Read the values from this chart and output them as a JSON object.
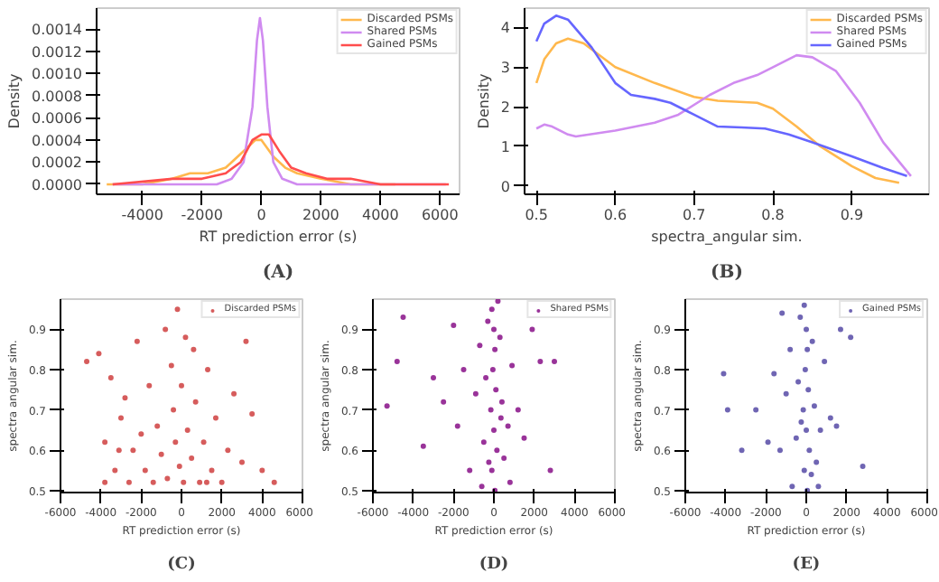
{
  "chart_data": [
    {
      "type": "line",
      "xlabel": "RT prediction error (s)",
      "ylabel": "Density",
      "annotations": [
        "(A)"
      ],
      "legend": "top right",
      "grid": false,
      "xlim": [
        -5540,
        6660
      ],
      "xticks": [
        -4000,
        -2000,
        0,
        2000,
        4000,
        6000
      ],
      "ylim": [
        -9e-05,
        0.00159
      ],
      "yticks": [
        {
          "value": 0,
          "label": "0.0000"
        },
        {
          "value": 0.0002,
          "label": "0.0002"
        },
        {
          "value": 0.0004,
          "label": "0.0004"
        },
        {
          "value": 0.0006,
          "label": "0.0006"
        },
        {
          "value": 0.0008,
          "label": "0.0008"
        },
        {
          "value": 0.001,
          "label": "0.0010"
        },
        {
          "value": 0.0012,
          "label": "0.0012"
        },
        {
          "value": 0.0014,
          "label": "0.0014"
        }
      ],
      "series": [
        {
          "name": "Discarded PSMs",
          "color": "#ffb84d",
          "x": [
            -5200,
            -4000,
            -3000,
            -2400,
            -1800,
            -1200,
            -600,
            -200,
            0,
            400,
            800,
            1200,
            2000,
            3000,
            4500
          ],
          "values": [
            0,
            0,
            5e-05,
            0.0001,
            0.0001,
            0.00015,
            0.0003,
            0.0004,
            0.0004,
            0.00025,
            0.00015,
            0.0001,
            5e-05,
            0,
            0
          ]
        },
        {
          "name": "Shared PSMs",
          "color": "#d08bf0",
          "x": [
            -5000,
            -3000,
            -1500,
            -1000,
            -600,
            -300,
            -150,
            -50,
            50,
            200,
            400,
            700,
            1200,
            3000,
            6200
          ],
          "values": [
            0,
            0,
            0,
            5e-05,
            0.0002,
            0.0007,
            0.0013,
            0.0015,
            0.0013,
            0.0007,
            0.0002,
            5e-05,
            0,
            0,
            0
          ]
        },
        {
          "name": "Gained PSMs",
          "color": "#ff4d4d",
          "x": [
            -5000,
            -3000,
            -2000,
            -1200,
            -700,
            -300,
            0,
            250,
            600,
            1000,
            1500,
            2200,
            3000,
            4000,
            6300
          ],
          "values": [
            0,
            5e-05,
            5e-05,
            0.0001,
            0.0002,
            0.0004,
            0.00045,
            0.00045,
            0.0003,
            0.00015,
            0.0001,
            5e-05,
            5e-05,
            0,
            0
          ]
        }
      ]
    },
    {
      "type": "line",
      "xlabel": "spectra_angular sim.",
      "ylabel": "Density",
      "annotations": [
        "(B)"
      ],
      "legend": "top right",
      "grid": false,
      "xlim": [
        0.485,
        0.998
      ],
      "xticks": [
        0.5,
        0.6,
        0.7,
        0.8,
        0.9
      ],
      "ylim": [
        -0.21,
        4.49
      ],
      "yticks": [
        0,
        1,
        2,
        3,
        4
      ],
      "series": [
        {
          "name": "Discarded PSMs",
          "color": "#ffb84d",
          "x": [
            0.5,
            0.51,
            0.525,
            0.54,
            0.56,
            0.6,
            0.65,
            0.7,
            0.73,
            0.78,
            0.8,
            0.83,
            0.86,
            0.9,
            0.93,
            0.96
          ],
          "values": [
            2.6,
            3.2,
            3.6,
            3.72,
            3.6,
            3.0,
            2.6,
            2.25,
            2.15,
            2.1,
            1.95,
            1.5,
            1.0,
            0.5,
            0.2,
            0.08
          ]
        },
        {
          "name": "Shared PSMs",
          "color": "#d08bf0",
          "x": [
            0.5,
            0.51,
            0.52,
            0.54,
            0.55,
            0.6,
            0.65,
            0.68,
            0.72,
            0.75,
            0.78,
            0.8,
            0.83,
            0.85,
            0.88,
            0.91,
            0.94,
            0.975
          ],
          "values": [
            1.45,
            1.55,
            1.5,
            1.3,
            1.25,
            1.4,
            1.6,
            1.8,
            2.3,
            2.6,
            2.8,
            3.0,
            3.3,
            3.25,
            2.9,
            2.1,
            1.1,
            0.25
          ]
        },
        {
          "name": "Gained PSMs",
          "color": "#6666ff",
          "x": [
            0.5,
            0.51,
            0.525,
            0.54,
            0.57,
            0.6,
            0.62,
            0.65,
            0.67,
            0.7,
            0.73,
            0.76,
            0.79,
            0.82,
            0.85,
            0.9,
            0.94,
            0.97
          ],
          "values": [
            3.65,
            4.1,
            4.3,
            4.2,
            3.5,
            2.6,
            2.3,
            2.2,
            2.1,
            1.8,
            1.5,
            1.48,
            1.45,
            1.3,
            1.1,
            0.75,
            0.45,
            0.25
          ]
        }
      ]
    },
    {
      "type": "scatter",
      "xlabel": "RT prediction error (s)",
      "ylabel": "spectra angular sim.",
      "annotations": [
        "(C)"
      ],
      "legend": "top right",
      "grid": false,
      "marker": "circle",
      "xlim": [
        -6000,
        6000
      ],
      "xticks": [
        -6000,
        -4000,
        -2000,
        0,
        2000,
        4000,
        6000
      ],
      "ylim": [
        0.495,
        0.975
      ],
      "yticks": [
        0.5,
        0.6,
        0.7,
        0.8,
        0.9
      ],
      "series": [
        {
          "name": "Discarded PSMs",
          "color": "#cc3333",
          "x": [
            -4700,
            -4100,
            -3800,
            -3500,
            -3300,
            -3000,
            -2800,
            -2600,
            -2400,
            -2200,
            -2000,
            -1800,
            -1600,
            -1400,
            -1200,
            -1000,
            -800,
            -700,
            -500,
            -400,
            -300,
            -200,
            -100,
            0,
            100,
            200,
            300,
            500,
            700,
            900,
            1100,
            1300,
            1500,
            1700,
            2000,
            2300,
            2600,
            3000,
            3200,
            3500,
            4000,
            4600,
            -3100,
            1250,
            -3800,
            600
          ],
          "values": [
            0.82,
            0.84,
            0.62,
            0.78,
            0.55,
            0.68,
            0.73,
            0.52,
            0.6,
            0.87,
            0.64,
            0.55,
            0.76,
            0.52,
            0.66,
            0.59,
            0.9,
            0.53,
            0.81,
            0.7,
            0.62,
            0.95,
            0.56,
            0.76,
            0.52,
            0.88,
            0.65,
            0.58,
            0.72,
            0.52,
            0.62,
            0.8,
            0.55,
            0.68,
            0.52,
            0.6,
            0.74,
            0.57,
            0.87,
            0.69,
            0.55,
            0.52,
            0.6,
            0.52,
            0.52,
            0.85
          ]
        }
      ]
    },
    {
      "type": "scatter",
      "xlabel": "RT prediction error (s)",
      "ylabel": "spectra angular sim.",
      "annotations": [
        "(D)"
      ],
      "legend": "top right",
      "grid": false,
      "marker": "circle",
      "xlim": [
        -6000,
        6000
      ],
      "xticks": [
        -6000,
        -4000,
        -2000,
        0,
        2000,
        4000,
        6000
      ],
      "ylim": [
        0.495,
        0.975
      ],
      "yticks": [
        0.5,
        0.6,
        0.7,
        0.8,
        0.9
      ],
      "series": [
        {
          "name": "Shared PSMs",
          "color": "#800080",
          "x": [
            -100,
            0,
            50,
            -50,
            100,
            -150,
            0,
            150,
            -100,
            50,
            -300,
            300,
            -400,
            400,
            -500,
            500,
            -700,
            700,
            -900,
            900,
            -1200,
            1200,
            -1500,
            1500,
            -2000,
            1900,
            -2500,
            2300,
            -3000,
            2800,
            -3500,
            3000,
            -4500,
            -5300,
            -4800,
            -1800,
            800,
            -600,
            200,
            -250,
            350
          ],
          "values": [
            0.95,
            0.9,
            0.85,
            0.8,
            0.75,
            0.7,
            0.65,
            0.6,
            0.55,
            0.5,
            0.92,
            0.88,
            0.78,
            0.72,
            0.62,
            0.58,
            0.86,
            0.66,
            0.74,
            0.81,
            0.55,
            0.7,
            0.8,
            0.63,
            0.91,
            0.9,
            0.72,
            0.82,
            0.78,
            0.55,
            0.61,
            0.82,
            0.93,
            0.71,
            0.82,
            0.66,
            0.52,
            0.51,
            0.97,
            0.57,
            0.68
          ]
        }
      ]
    },
    {
      "type": "scatter",
      "xlabel": "RT prediction error (s)",
      "ylabel": "spectra angular sim.",
      "annotations": [
        "(E)"
      ],
      "legend": "top right",
      "grid": false,
      "marker": "circle",
      "xlim": [
        -6000,
        6000
      ],
      "xticks": [
        -6000,
        -4000,
        -2000,
        0,
        2000,
        4000,
        6000
      ],
      "ylim": [
        0.495,
        0.975
      ],
      "yticks": [
        0.5,
        0.6,
        0.7,
        0.8,
        0.9
      ],
      "series": [
        {
          "name": "Gained PSMs",
          "color": "#4b3fa0",
          "x": [
            -100,
            0,
            50,
            -50,
            100,
            -150,
            0,
            150,
            -100,
            50,
            -300,
            300,
            -400,
            400,
            -500,
            500,
            -800,
            700,
            -1000,
            900,
            -1300,
            1200,
            -1600,
            1500,
            -1900,
            1700,
            -2500,
            2200,
            -3200,
            2800,
            -4100,
            -3900,
            -1200,
            600,
            -700,
            250,
            -250
          ],
          "values": [
            0.96,
            0.9,
            0.85,
            0.8,
            0.75,
            0.7,
            0.65,
            0.6,
            0.55,
            0.5,
            0.93,
            0.87,
            0.77,
            0.71,
            0.63,
            0.57,
            0.85,
            0.65,
            0.74,
            0.82,
            0.6,
            0.68,
            0.79,
            0.66,
            0.62,
            0.9,
            0.7,
            0.88,
            0.6,
            0.56,
            0.79,
            0.7,
            0.94,
            0.51,
            0.51,
            0.54,
            0.67
          ]
        }
      ]
    }
  ]
}
